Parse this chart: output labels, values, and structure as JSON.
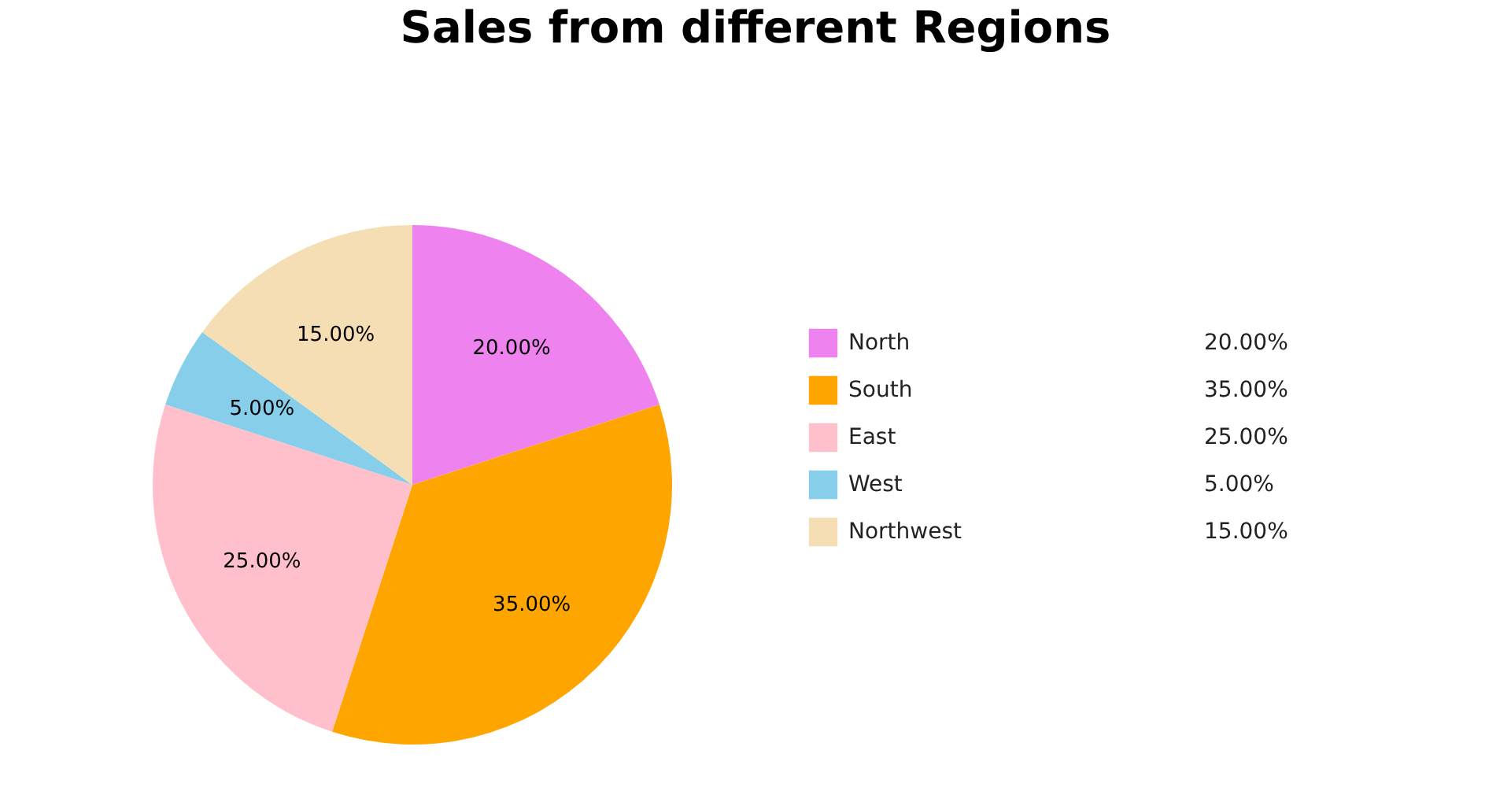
{
  "chart_data": {
    "type": "pie",
    "title": "Sales from different Regions",
    "categories": [
      "North",
      "South",
      "East",
      "West",
      "Northwest"
    ],
    "values": [
      20,
      35,
      25,
      5,
      15
    ],
    "value_labels": [
      "20.00%",
      "35.00%",
      "25.00%",
      "5.00%",
      "15.00%"
    ],
    "colors": [
      "#ee82ee",
      "#ffa500",
      "#ffc0cb",
      "#87ceeb",
      "#f5deb3"
    ],
    "legend": "right"
  }
}
